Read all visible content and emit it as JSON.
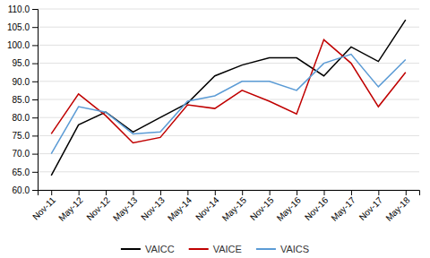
{
  "chart_data": {
    "type": "line",
    "categories": [
      "Nov-11",
      "May-12",
      "Nov-12",
      "May-13",
      "Nov-13",
      "May-14",
      "Nov-14",
      "May-15",
      "Nov-15",
      "May-16",
      "Nov-16",
      "May-17",
      "Nov-17",
      "May-18"
    ],
    "series": [
      {
        "name": "VAICC",
        "color": "#000000",
        "values": [
          64.0,
          78.0,
          81.5,
          76.0,
          80.0,
          84.0,
          91.5,
          94.5,
          96.5,
          96.5,
          91.5,
          99.5,
          95.5,
          107.0
        ]
      },
      {
        "name": "VAICE",
        "color": "#C00000",
        "values": [
          75.5,
          86.5,
          80.5,
          73.0,
          74.5,
          83.5,
          82.5,
          87.5,
          84.5,
          81.0,
          101.5,
          95.0,
          83.0,
          92.5
        ]
      },
      {
        "name": "VAICS",
        "color": "#5B9BD5",
        "values": [
          70.0,
          83.0,
          81.5,
          75.5,
          76.0,
          84.5,
          86.0,
          90.0,
          90.0,
          87.5,
          95.0,
          97.5,
          88.5,
          96.0
        ]
      }
    ],
    "ylim": [
      60.0,
      110.0
    ],
    "yticks": [
      {
        "value": 60,
        "label": "60.0"
      },
      {
        "value": 65,
        "label": "65.0"
      },
      {
        "value": 70,
        "label": "70.0"
      },
      {
        "value": 75,
        "label": "75.0"
      },
      {
        "value": 80,
        "label": "80.0"
      },
      {
        "value": 85,
        "label": "85.0"
      },
      {
        "value": 90,
        "label": "90.0"
      },
      {
        "value": 95,
        "label": "95.0"
      },
      {
        "value": 100,
        "label": "100.0"
      },
      {
        "value": 105,
        "label": "105.0"
      },
      {
        "value": 110,
        "label": "110.0"
      }
    ],
    "grid": true,
    "legend": "bottom"
  }
}
